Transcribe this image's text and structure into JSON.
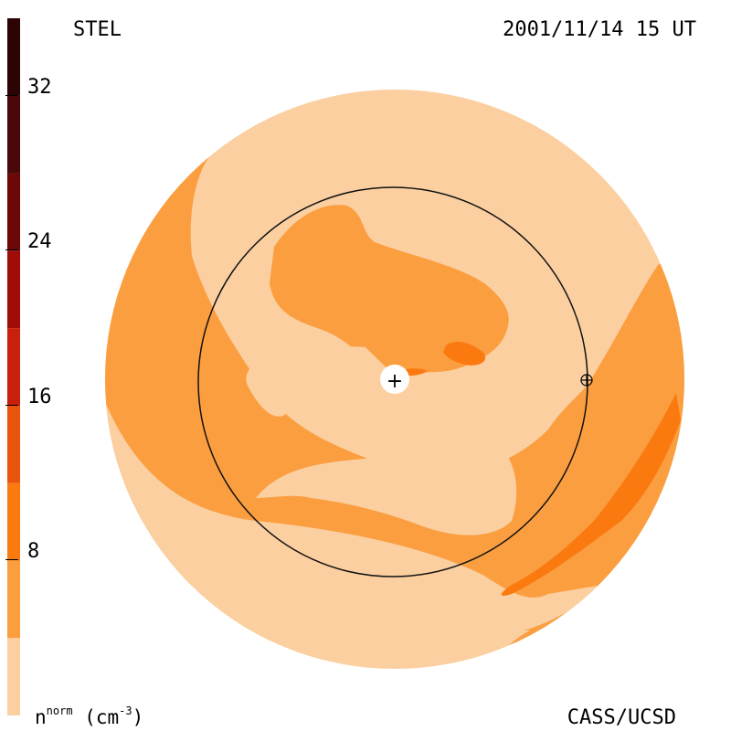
{
  "header": {
    "site": "STEL",
    "timestamp": "2001/11/14 15 UT"
  },
  "footer": {
    "credit": "CASS/UCSD"
  },
  "colorbar": {
    "unit_prefix": "n",
    "unit_sup": "norm",
    "unit_suffix": " (cm",
    "unit_exp": "-3",
    "unit_close": ")",
    "min": 0,
    "max": 36,
    "ticks": [
      {
        "value": 8,
        "label": "8"
      },
      {
        "value": 16,
        "label": "16"
      },
      {
        "value": 24,
        "label": "24"
      },
      {
        "value": 32,
        "label": "32"
      }
    ],
    "bands": [
      {
        "from": 0,
        "to": 4,
        "color": "#fbcfa0"
      },
      {
        "from": 4,
        "to": 8,
        "color": "#fb9e40"
      },
      {
        "from": 8,
        "to": 12,
        "color": "#fb7a10"
      },
      {
        "from": 12,
        "to": 16,
        "color": "#e8540c"
      },
      {
        "from": 16,
        "to": 20,
        "color": "#c8200c"
      },
      {
        "from": 20,
        "to": 24,
        "color": "#a00c08"
      },
      {
        "from": 24,
        "to": 28,
        "color": "#6c0808"
      },
      {
        "from": 28,
        "to": 32,
        "color": "#4a0808"
      },
      {
        "from": 32,
        "to": 36,
        "color": "#2c0404"
      }
    ]
  },
  "colors": {
    "level1": "#fbcfa0",
    "level2": "#fb9e40",
    "level3": "#fb7a10",
    "orbit": "#111111"
  },
  "markers": {
    "sun": "+",
    "earth": "⊕"
  }
}
